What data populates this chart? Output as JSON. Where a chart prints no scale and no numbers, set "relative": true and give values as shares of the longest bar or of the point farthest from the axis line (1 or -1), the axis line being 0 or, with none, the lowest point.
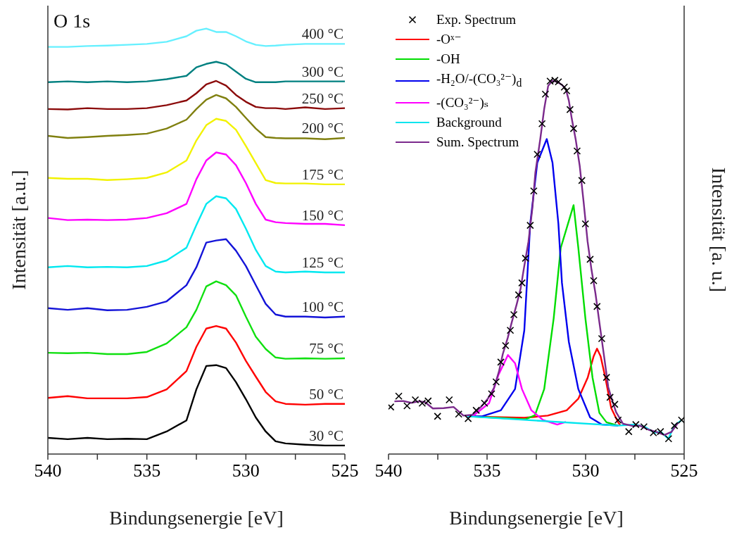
{
  "chart_data": [
    {
      "type": "line",
      "relative": true,
      "annotations": [
        "O 1s"
      ],
      "xlabel": "Bindungsenergie [eV]",
      "ylabel": "Intensität [a.u.]",
      "xlim": [
        540,
        525
      ],
      "xticks": [
        540,
        {
          "value": 537.5,
          "label": null
        },
        535,
        {
          "value": 532.5,
          "label": null
        },
        530,
        {
          "value": 527.5,
          "label": null
        },
        525
      ],
      "tick_labels": "x",
      "legend": false,
      "grid": false,
      "line_style": "solid",
      "x": [
        540,
        539,
        538,
        537,
        536,
        535,
        534,
        533,
        532.5,
        532,
        531.5,
        531,
        530.5,
        530,
        529.5,
        529,
        528.5,
        528,
        527,
        526,
        525
      ],
      "series": [
        {
          "name": "30 °C",
          "color": "#000000",
          "values": [
            0.038,
            0.035,
            0.038,
            0.035,
            0.036,
            0.035,
            0.053,
            0.079,
            0.152,
            0.207,
            0.209,
            0.202,
            0.169,
            0.129,
            0.086,
            0.053,
            0.03,
            0.025,
            0.022,
            0.02,
            0.02
          ]
        },
        {
          "name": "50 °C",
          "color": "#ff0000",
          "values": [
            0.132,
            0.136,
            0.131,
            0.131,
            0.131,
            0.134,
            0.152,
            0.195,
            0.252,
            0.295,
            0.301,
            0.295,
            0.262,
            0.219,
            0.182,
            0.146,
            0.124,
            0.118,
            0.116,
            0.118,
            0.118
          ]
        },
        {
          "name": "75 °C",
          "color": "#10e010",
          "values": [
            0.238,
            0.237,
            0.238,
            0.235,
            0.235,
            0.24,
            0.26,
            0.298,
            0.339,
            0.394,
            0.406,
            0.397,
            0.373,
            0.323,
            0.276,
            0.247,
            0.227,
            0.224,
            0.225,
            0.224,
            0.225
          ]
        },
        {
          "name": "100 °C",
          "color": "#1414d8",
          "values": [
            0.343,
            0.339,
            0.343,
            0.338,
            0.339,
            0.346,
            0.359,
            0.397,
            0.439,
            0.497,
            0.502,
            0.505,
            0.478,
            0.442,
            0.397,
            0.353,
            0.328,
            0.323,
            0.323,
            0.321,
            0.323
          ]
        },
        {
          "name": "125 °C",
          "color": "#00e8f0",
          "values": [
            0.439,
            0.442,
            0.439,
            0.44,
            0.439,
            0.442,
            0.455,
            0.485,
            0.538,
            0.588,
            0.606,
            0.601,
            0.576,
            0.53,
            0.48,
            0.442,
            0.429,
            0.427,
            0.429,
            0.427,
            0.427
          ]
        },
        {
          "name": "150 °C",
          "color": "#ff00ff",
          "values": [
            0.555,
            0.55,
            0.551,
            0.55,
            0.551,
            0.555,
            0.566,
            0.588,
            0.646,
            0.69,
            0.709,
            0.704,
            0.679,
            0.637,
            0.588,
            0.551,
            0.545,
            0.543,
            0.541,
            0.541,
            0.538
          ]
        },
        {
          "name": "175 °C",
          "color": "#f2f200",
          "values": [
            0.649,
            0.647,
            0.647,
            0.644,
            0.646,
            0.649,
            0.662,
            0.69,
            0.737,
            0.773,
            0.788,
            0.783,
            0.762,
            0.724,
            0.684,
            0.644,
            0.637,
            0.636,
            0.636,
            0.634,
            0.634
          ]
        },
        {
          "name": "200 °C",
          "color": "#808010",
          "values": [
            0.748,
            0.743,
            0.745,
            0.748,
            0.75,
            0.753,
            0.765,
            0.786,
            0.811,
            0.833,
            0.844,
            0.836,
            0.816,
            0.79,
            0.765,
            0.745,
            0.743,
            0.742,
            0.742,
            0.74,
            0.743
          ]
        },
        {
          "name": "250 °C",
          "color": "#8b0a0a",
          "values": [
            0.811,
            0.81,
            0.813,
            0.811,
            0.811,
            0.813,
            0.82,
            0.831,
            0.848,
            0.869,
            0.877,
            0.866,
            0.844,
            0.828,
            0.816,
            0.813,
            0.813,
            0.811,
            0.815,
            0.811,
            0.813
          ]
        },
        {
          "name": "300 °C",
          "color": "#008080",
          "values": [
            0.874,
            0.876,
            0.874,
            0.876,
            0.874,
            0.876,
            0.881,
            0.889,
            0.909,
            0.917,
            0.922,
            0.916,
            0.899,
            0.882,
            0.874,
            0.874,
            0.874,
            0.876,
            0.876,
            0.876,
            0.876
          ]
        },
        {
          "name": "400 °C",
          "color": "#66f0ff",
          "values": [
            0.957,
            0.957,
            0.959,
            0.96,
            0.962,
            0.964,
            0.969,
            0.982,
            0.995,
            1,
            0.992,
            0.992,
            0.982,
            0.97,
            0.962,
            0.959,
            0.96,
            0.962,
            0.964,
            0.964,
            0.964
          ]
        }
      ]
    },
    {
      "type": "line",
      "relative": true,
      "xlabel": "Bindungsenergie [eV]",
      "y2label": "Intensität [a. u.]",
      "xlim": [
        540,
        525
      ],
      "xticks": [
        540,
        {
          "value": 537.5,
          "label": null
        },
        535,
        {
          "value": 532.5,
          "label": null
        },
        530,
        {
          "value": 527.5,
          "label": null
        },
        525
      ],
      "tick_labels": "x",
      "legend": "top left",
      "grid": false,
      "series": [
        {
          "name": "Exp. Spectrum",
          "type": "scatter",
          "marker": "cross",
          "color": "#000000",
          "x": [
            539.89,
            539.48,
            539.06,
            538.64,
            538.29,
            537.99,
            537.51,
            536.92,
            536.44,
            535.96,
            535.55,
            535.13,
            534.77,
            534.54,
            534.3,
            534.06,
            533.82,
            533.64,
            533.4,
            533.23,
            533.05,
            532.81,
            532.63,
            532.45,
            532.21,
            532.04,
            531.8,
            531.56,
            531.38,
            531.08,
            530.96,
            530.79,
            530.61,
            530.43,
            530.19,
            530.01,
            529.77,
            529.59,
            529.42,
            529.18,
            528.94,
            528.76,
            528.52,
            528.35,
            527.81,
            527.45,
            527.04,
            526.56,
            526.2,
            525.79,
            525.49,
            525.13
          ],
          "values": [
            0.126,
            0.155,
            0.129,
            0.145,
            0.136,
            0.142,
            0.101,
            0.145,
            0.107,
            0.095,
            0.117,
            0.136,
            0.161,
            0.193,
            0.246,
            0.29,
            0.331,
            0.373,
            0.426,
            0.458,
            0.524,
            0.612,
            0.704,
            0.802,
            0.884,
            0.963,
            0.998,
            1,
            0.996,
            0.982,
            0.972,
            0.922,
            0.871,
            0.811,
            0.732,
            0.616,
            0.521,
            0.464,
            0.395,
            0.309,
            0.205,
            0.152,
            0.133,
            0.091,
            0.06,
            0.079,
            0.073,
            0.057,
            0.06,
            0.041,
            0.076,
            0.091
          ]
        },
        {
          "name": "-Oˣ⁻",
          "color": "#ff0000",
          "x": [
            536,
            534.66,
            533.11,
            531.92,
            530.96,
            530.37,
            529.89,
            529.59,
            529.42,
            529.24,
            529,
            528.7,
            528.35,
            528.23
          ],
          "values": [
            0.101,
            0.099,
            0.097,
            0.103,
            0.117,
            0.148,
            0.205,
            0.262,
            0.282,
            0.262,
            0.205,
            0.123,
            0.085,
            0.076
          ]
        },
        {
          "name": "-OH",
          "color": "#00dd00",
          "x": [
            536,
            534.5,
            533.05,
            532.57,
            532.1,
            531.62,
            531.26,
            530.61,
            530.37,
            530.01,
            529.65,
            529.3,
            528.94,
            528.35
          ],
          "values": [
            0.101,
            0.097,
            0.093,
            0.104,
            0.174,
            0.363,
            0.552,
            0.666,
            0.552,
            0.363,
            0.205,
            0.11,
            0.085,
            0.076
          ]
        },
        {
          "name": "-H₂O/-(CO₃²⁻)$_{d}$",
          "color": "#0000ee",
          "x": [
            536,
            535.25,
            534.3,
            533.58,
            533.11,
            532.81,
            532.45,
            531.97,
            531.68,
            531.38,
            531.2,
            530.85,
            530.37,
            529.77,
            529.18,
            528.35
          ],
          "values": [
            0.101,
            0.101,
            0.117,
            0.174,
            0.331,
            0.616,
            0.78,
            0.843,
            0.78,
            0.616,
            0.458,
            0.3,
            0.174,
            0.098,
            0.079,
            0.076
          ]
        },
        {
          "name": "-(CO₃²⁻)ₛ",
          "color": "#ff00ff",
          "x": [
            536,
            535.73,
            534.9,
            534.42,
            533.94,
            533.58,
            533.23,
            532.75,
            532.16,
            531.44,
            531
          ],
          "values": [
            0.101,
            0.101,
            0.136,
            0.212,
            0.265,
            0.243,
            0.174,
            0.117,
            0.091,
            0.079,
            0.086
          ]
        },
        {
          "name": "Background",
          "color": "#00e5ee",
          "x": [
            536,
            528.35,
            527.5,
            527,
            526.5,
            526.2,
            525.8,
            525.5,
            525.13
          ],
          "values": [
            0.101,
            0.076,
            0.079,
            0.073,
            0.057,
            0.06,
            0.041,
            0.076,
            0.091
          ]
        },
        {
          "name": "Sum. Spectrum",
          "color": "#7b2a8c",
          "x": [
            539.7,
            539.25,
            538.85,
            538.45,
            538.15,
            537.75,
            537.2,
            536.7,
            536.2,
            535.75,
            535.35,
            534.95,
            534.65,
            534.4,
            534.2,
            533.95,
            533.75,
            533.5,
            533.3,
            533.15,
            532.9,
            532.7,
            532.55,
            532.3,
            532.1,
            531.9,
            531.7,
            531.45,
            531.2,
            531,
            530.85,
            530.7,
            530.5,
            530.3,
            530.1,
            529.9,
            529.7,
            529.5,
            529.3,
            529.05,
            528.85,
            528.65,
            528.45,
            528.1,
            527.6,
            527.25,
            526.8,
            526.4,
            526,
            525.65,
            525.3
          ],
          "values": [
            0.141,
            0.142,
            0.137,
            0.141,
            0.139,
            0.122,
            0.123,
            0.126,
            0.103,
            0.105,
            0.124,
            0.149,
            0.177,
            0.22,
            0.268,
            0.311,
            0.352,
            0.4,
            0.442,
            0.491,
            0.568,
            0.658,
            0.753,
            0.843,
            0.924,
            0.985,
            0.999,
            0.996,
            0.988,
            0.976,
            0.946,
            0.897,
            0.841,
            0.772,
            0.674,
            0.569,
            0.493,
            0.43,
            0.352,
            0.257,
            0.179,
            0.143,
            0.112,
            0.081,
            0.075,
            0.076,
            0.065,
            0.059,
            0.051,
            0.059,
            0.084
          ]
        }
      ]
    }
  ]
}
